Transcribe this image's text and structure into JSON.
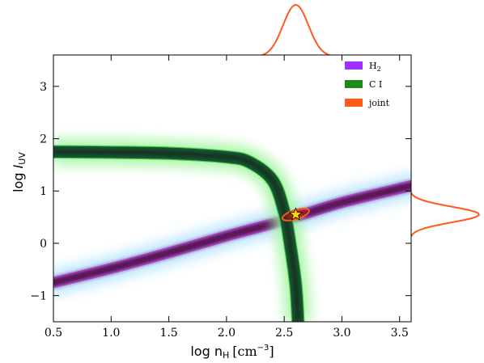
{
  "chart_data": {
    "type": "contour",
    "xlabel": {
      "main": "log n",
      "sub": "H",
      "units": "[cm",
      "sup": "−3",
      "close": "]"
    },
    "ylabel": {
      "main": "log ",
      "var": "I",
      "sub": "UV"
    },
    "xlim": [
      0.5,
      3.6
    ],
    "ylim": [
      -1.5,
      3.6
    ],
    "xticks": [
      0.5,
      1.0,
      1.5,
      2.0,
      2.5,
      3.0,
      3.5
    ],
    "xtick_labels": [
      "0.5",
      "1.0",
      "1.5",
      "2.0",
      "2.5",
      "3.0",
      "3.5"
    ],
    "yticks": [
      -1,
      0,
      1,
      2,
      3
    ],
    "ytick_labels": [
      "−1",
      "0",
      "1",
      "2",
      "3"
    ],
    "legend": {
      "position": "top-right",
      "entries": [
        {
          "label": "H",
          "sub": "2",
          "color": "#9b30ff"
        },
        {
          "label": "C I",
          "sub": "",
          "color": "#1a8a1a"
        },
        {
          "label": "joint",
          "sub": "",
          "color": "#ff5a1a"
        }
      ]
    },
    "h2_band": {
      "x": [
        0.5,
        1.0,
        1.5,
        2.0,
        2.5,
        3.0,
        3.6
      ],
      "y": [
        -0.75,
        -0.48,
        -0.18,
        0.14,
        0.44,
        0.78,
        1.1
      ],
      "color": "#9b30ff",
      "halfwidth": 0.1
    },
    "ci_band": {
      "x": [
        0.5,
        1.0,
        1.5,
        2.0,
        2.2,
        2.4,
        2.5,
        2.55,
        2.6,
        2.62
      ],
      "y": [
        1.75,
        1.74,
        1.72,
        1.65,
        1.55,
        1.2,
        0.6,
        0.0,
        -0.8,
        -1.5
      ],
      "color": "#1a8a1a",
      "halfwidth": 0.12
    },
    "joint": {
      "center": [
        2.6,
        0.55
      ],
      "sigma_x": 0.12,
      "sigma_y": 0.16,
      "color": "#ff5a1a"
    },
    "best_fit_marker": {
      "x": 2.6,
      "y": 0.55,
      "shape": "star",
      "color": "#ffd700"
    },
    "marginal_x": {
      "mean": 2.6,
      "sigma": 0.11,
      "color": "#ff5a1a"
    },
    "marginal_y": {
      "mean": 0.55,
      "sigma": 0.15,
      "color": "#ff5a1a"
    }
  }
}
